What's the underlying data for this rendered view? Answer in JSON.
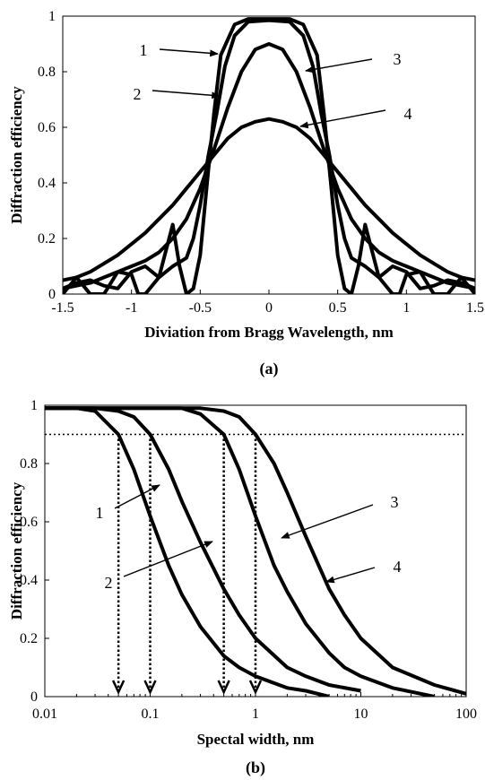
{
  "chart_data": [
    {
      "panel_label": "(a)",
      "type": "line",
      "xlabel": "Diviation from Bragg Wavelength, nm",
      "ylabel": "Diffraction efficiency",
      "xlim": [
        -1.5,
        1.5
      ],
      "ylim": [
        0,
        1
      ],
      "x_ticks": [
        "-1.5",
        "-1",
        "-0.5",
        "0",
        "0.5",
        "1",
        "1.5"
      ],
      "y_ticks": [
        "0",
        "0.2",
        "0.4",
        "0.6",
        "0.8",
        "1"
      ],
      "grid": false,
      "series": [
        {
          "name": "1",
          "x": [
            0,
            0.15,
            0.25,
            0.35,
            0.4,
            0.45,
            0.5,
            0.55,
            0.6,
            0.65,
            0.7,
            0.8,
            0.9,
            0.95,
            1.0,
            1.1,
            1.2,
            1.3,
            1.35,
            1.4,
            1.5
          ],
          "values": [
            0.99,
            0.99,
            0.97,
            0.86,
            0.65,
            0.4,
            0.14,
            0.02,
            0.0,
            0.1,
            0.25,
            0.06,
            0.0,
            0.0,
            0.07,
            0.08,
            0.0,
            0.0,
            0.03,
            0.06,
            0.0
          ]
        },
        {
          "name": "2",
          "x": [
            0,
            0.15,
            0.25,
            0.32,
            0.38,
            0.44,
            0.5,
            0.55,
            0.6,
            0.7,
            0.8,
            0.9,
            1.0,
            1.1,
            1.2,
            1.3,
            1.4,
            1.5
          ],
          "values": [
            0.985,
            0.98,
            0.93,
            0.82,
            0.65,
            0.5,
            0.32,
            0.2,
            0.13,
            0.1,
            0.06,
            0.1,
            0.08,
            0.02,
            0.03,
            0.05,
            0.04,
            0.02
          ]
        },
        {
          "name": "3",
          "x": [
            0,
            0.1,
            0.2,
            0.3,
            0.4,
            0.5,
            0.6,
            0.7,
            0.8,
            0.9,
            1.0,
            1.1,
            1.2,
            1.3,
            1.4,
            1.5
          ],
          "values": [
            0.9,
            0.88,
            0.8,
            0.67,
            0.52,
            0.38,
            0.27,
            0.2,
            0.15,
            0.12,
            0.1,
            0.08,
            0.06,
            0.04,
            0.03,
            0.02
          ]
        },
        {
          "name": "4",
          "x": [
            0,
            0.1,
            0.2,
            0.3,
            0.4,
            0.5,
            0.6,
            0.7,
            0.8,
            0.9,
            1.0,
            1.1,
            1.2,
            1.3,
            1.4,
            1.5
          ],
          "values": [
            0.63,
            0.62,
            0.6,
            0.56,
            0.5,
            0.44,
            0.38,
            0.32,
            0.27,
            0.22,
            0.18,
            0.14,
            0.11,
            0.08,
            0.06,
            0.05
          ]
        }
      ],
      "curves_symmetric_about_zero": true,
      "annotations": [
        "1",
        "2",
        "3",
        "4"
      ]
    },
    {
      "panel_label": "(b)",
      "type": "line",
      "xlabel": "Spectal width, nm",
      "ylabel": "Diffraction efficiency",
      "xscale": "log",
      "xlim": [
        0.01,
        100
      ],
      "ylim": [
        0,
        1
      ],
      "x_ticks": [
        "0.01",
        "0.1",
        "1",
        "10",
        "100"
      ],
      "y_ticks": [
        "0",
        "0.2",
        "0.4",
        "0.6",
        "0.8",
        "1"
      ],
      "grid": false,
      "reference_line_y": 0.9,
      "marked_widths": [
        0.05,
        0.1,
        0.5,
        1
      ],
      "series": [
        {
          "name": "1",
          "x": [
            0.01,
            0.02,
            0.03,
            0.05,
            0.07,
            0.1,
            0.15,
            0.2,
            0.3,
            0.5,
            0.7,
            1,
            2,
            3,
            5
          ],
          "values": [
            0.99,
            0.99,
            0.98,
            0.9,
            0.78,
            0.62,
            0.45,
            0.35,
            0.24,
            0.14,
            0.1,
            0.07,
            0.03,
            0.02,
            0.0
          ]
        },
        {
          "name": "2",
          "x": [
            0.01,
            0.03,
            0.05,
            0.07,
            0.1,
            0.15,
            0.2,
            0.3,
            0.5,
            0.7,
            1,
            2,
            3,
            5,
            10
          ],
          "values": [
            0.99,
            0.99,
            0.98,
            0.96,
            0.9,
            0.78,
            0.67,
            0.53,
            0.37,
            0.28,
            0.2,
            0.1,
            0.07,
            0.04,
            0.02
          ]
        },
        {
          "name": "3",
          "x": [
            0.01,
            0.1,
            0.2,
            0.3,
            0.5,
            0.7,
            1,
            1.5,
            2,
            3,
            5,
            7,
            10,
            20,
            50
          ],
          "values": [
            0.99,
            0.99,
            0.99,
            0.97,
            0.9,
            0.78,
            0.62,
            0.45,
            0.36,
            0.25,
            0.15,
            0.1,
            0.07,
            0.03,
            0.0
          ]
        },
        {
          "name": "4",
          "x": [
            0.01,
            0.1,
            0.3,
            0.5,
            0.7,
            1,
            1.5,
            2,
            3,
            5,
            7,
            10,
            20,
            50,
            100
          ],
          "values": [
            0.99,
            0.99,
            0.99,
            0.98,
            0.96,
            0.9,
            0.8,
            0.7,
            0.55,
            0.37,
            0.28,
            0.2,
            0.1,
            0.04,
            0.01
          ]
        }
      ],
      "annotations": [
        "1",
        "2",
        "3",
        "4"
      ]
    }
  ]
}
